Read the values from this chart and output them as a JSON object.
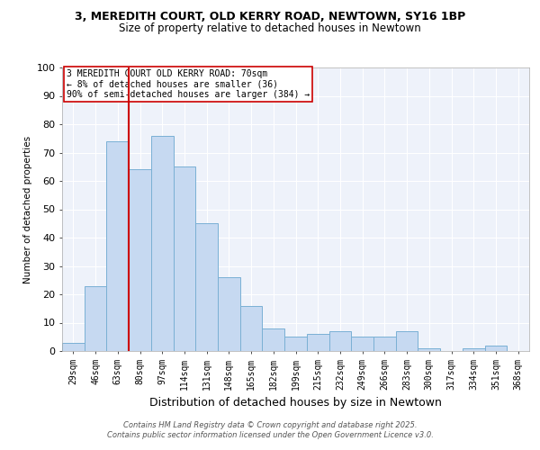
{
  "title_line1": "3, MEREDITH COURT, OLD KERRY ROAD, NEWTOWN, SY16 1BP",
  "title_line2": "Size of property relative to detached houses in Newtown",
  "xlabel": "Distribution of detached houses by size in Newtown",
  "ylabel": "Number of detached properties",
  "categories": [
    "29sqm",
    "46sqm",
    "63sqm",
    "80sqm",
    "97sqm",
    "114sqm",
    "131sqm",
    "148sqm",
    "165sqm",
    "182sqm",
    "199sqm",
    "215sqm",
    "232sqm",
    "249sqm",
    "266sqm",
    "283sqm",
    "300sqm",
    "317sqm",
    "334sqm",
    "351sqm",
    "368sqm"
  ],
  "values": [
    3,
    23,
    74,
    64,
    76,
    65,
    45,
    26,
    16,
    8,
    5,
    6,
    7,
    5,
    5,
    7,
    1,
    0,
    1,
    2,
    0
  ],
  "bar_color": "#c6d9f1",
  "bar_edge_color": "#7ab0d4",
  "vline_color": "#cc0000",
  "vline_x_index": 2,
  "annotation_text": "3 MEREDITH COURT OLD KERRY ROAD: 70sqm\n← 8% of detached houses are smaller (36)\n90% of semi-detached houses are larger (384) →",
  "annotation_box_color": "white",
  "annotation_box_edge": "#cc0000",
  "ylim": [
    0,
    100
  ],
  "background_color": "#eef2fa",
  "grid_color": "white",
  "footer_text": "Contains HM Land Registry data © Crown copyright and database right 2025.\nContains public sector information licensed under the Open Government Licence v3.0."
}
